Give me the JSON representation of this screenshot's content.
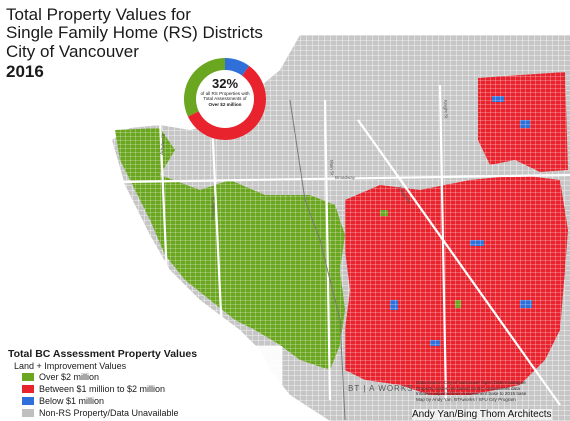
{
  "title": {
    "line1": "Total Property Values for",
    "line2": "Single Family Home (RS) Districts",
    "line3": "City of Vancouver",
    "year": "2016"
  },
  "donut": {
    "percent": "32%",
    "line1": "of all RS Properties with",
    "line2": "Total Assessments of",
    "line3": "Over $2 million",
    "share_over_2m": 32,
    "share_below_1m": 10,
    "share_1m_to_2m": 58
  },
  "legend": {
    "title": "Total BC Assessment Property Values",
    "subtitle": "Land + Improvement Values",
    "items": [
      {
        "label": "Over $2 million",
        "color": "#6aa61f"
      },
      {
        "label": "Between $1 million to $2 million",
        "color": "#e8232d"
      },
      {
        "label": "Below $1 million",
        "color": "#2f6fd9"
      },
      {
        "label": "Non-RS Property/Data Unavailable",
        "color": "#bfbfbf"
      }
    ]
  },
  "streets": {
    "broadway": "Broadway",
    "granville": "Granville St",
    "main": "Main St",
    "kingsway": "Kingsway",
    "knight": "Knight St",
    "arbutus": "Arbutus St"
  },
  "brand": "BT | A WORKS",
  "source": {
    "line1": "Data Source: City of Vancouver Open Data Catalogue",
    "line2": "Property values are based on BC Assessment data",
    "line3": "Inflation adjusted from Assessment base to 2015 base",
    "line4": "Map by Andy Yan, BTAworks / SFU City Program"
  },
  "credit": "Andy Yan/Bing Thom Architects",
  "colors": {
    "green": "#6aa61f",
    "red": "#e8232d",
    "blue": "#2f6fd9",
    "grey": "#bfbfbf",
    "street": "#ffffff"
  }
}
